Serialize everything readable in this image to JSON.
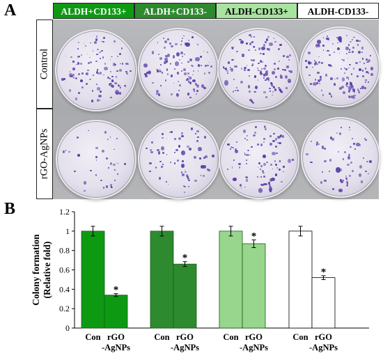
{
  "panel_a": {
    "label": "A",
    "headers": [
      {
        "text": "ALDH+CD133+",
        "bg": "#0d9a12",
        "fg": "#ffffff"
      },
      {
        "text": "ALDH+CD133-",
        "bg": "#2e8a2e",
        "fg": "#ffffff"
      },
      {
        "text": "ALDH-CD133+",
        "bg": "#a8e3a0",
        "fg": "#000000"
      },
      {
        "text": "ALDH-CD133-",
        "bg": "#ffffff",
        "fg": "#000000"
      }
    ],
    "row_labels": [
      "Control",
      "rGO-AgNPs"
    ],
    "colony_color": "#5a3ea8"
  },
  "panel_b": {
    "label": "B"
  },
  "chart_data": {
    "type": "bar",
    "ylabel": "Colony formation (Relative fold)",
    "ylabel_lines": [
      "Colony formation",
      "(Relative fold)"
    ],
    "ylim": [
      0,
      1.2
    ],
    "yticks": [
      "0",
      "0.2",
      "0.4",
      "0.6",
      "0.8",
      "1",
      "1.2"
    ],
    "grid": false,
    "groups": [
      {
        "name": "ALDH+CD133+",
        "color": "#0d9a12",
        "values": [
          1.0,
          0.34
        ],
        "errors": [
          0.05,
          0.015
        ],
        "sig": [
          false,
          true
        ]
      },
      {
        "name": "ALDH+CD133-",
        "color": "#2e8a2e",
        "values": [
          1.0,
          0.66
        ],
        "errors": [
          0.05,
          0.025
        ],
        "sig": [
          false,
          true
        ]
      },
      {
        "name": "ALDH-CD133+",
        "color": "#97d68c",
        "values": [
          1.0,
          0.87
        ],
        "errors": [
          0.05,
          0.04
        ],
        "sig": [
          false,
          true
        ]
      },
      {
        "name": "ALDH-CD133-",
        "color": "#ffffff",
        "values": [
          1.0,
          0.52
        ],
        "errors": [
          0.05,
          0.02
        ],
        "sig": [
          false,
          true
        ]
      }
    ],
    "category_labels": [
      [
        "Con"
      ],
      [
        "rGO",
        "-AgNPs"
      ]
    ],
    "sig_marker": "*"
  }
}
